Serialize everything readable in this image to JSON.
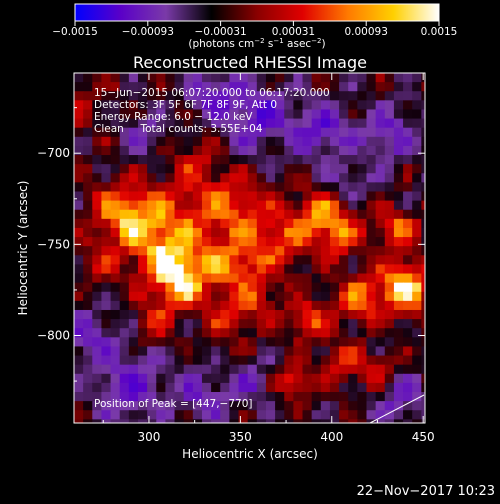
{
  "chart_data": {
    "type": "heatmap",
    "title": "Reconstructed RHESSI Image",
    "colorbar": {
      "ticks": [
        "−0.0015",
        "−0.00093",
        "−0.00031",
        "0.00031",
        "0.00093",
        "0.0015"
      ],
      "range": [
        -0.0015,
        0.0015
      ],
      "unit_parts": [
        "(photons cm",
        "−2",
        " s",
        "−1",
        " asec",
        "−2",
        ")"
      ],
      "colors": [
        "#0000ff",
        "#5a00c8",
        "#7a3aa8",
        "#000000",
        "#8a0000",
        "#e00000",
        "#ff7a00",
        "#ffd000",
        "#ffffff"
      ]
    },
    "info_lines": [
      "15−Jun−2015 06:07:20.000 to 06:17:20.000",
      "Detectors: 3F 5F 6F 7F 8F 9F, Att 0",
      "Energy Range: 6.0 − 12.0 keV",
      "Clean     Total counts: 3.55E+04"
    ],
    "peak_label": "Position of Peak = [447,−770]",
    "peak": [
      447,
      -770
    ],
    "xlabel": "Heliocentric X (arcsec)",
    "ylabel": "Heliocentric Y (arcsec)",
    "xlim": [
      259,
      451
    ],
    "ylim": [
      -848,
      -656
    ],
    "xticks": [
      {
        "value": 300,
        "label": "300"
      },
      {
        "value": 350,
        "label": "350"
      },
      {
        "value": 400,
        "label": "400"
      },
      {
        "value": 450,
        "label": "450"
      }
    ],
    "yticks": [
      {
        "value": -700,
        "label": "−700"
      },
      {
        "value": -750,
        "label": "−750"
      },
      {
        "value": -800,
        "label": "−800"
      }
    ],
    "blobs": [
      {
        "x": 317,
        "y": -768,
        "s": 12,
        "a": 0.0014
      },
      {
        "x": 305,
        "y": -742,
        "s": 16,
        "a": 0.0011
      },
      {
        "x": 283,
        "y": -732,
        "s": 11,
        "a": 0.0008
      },
      {
        "x": 345,
        "y": -730,
        "s": 13,
        "a": 0.0009
      },
      {
        "x": 347,
        "y": -762,
        "s": 10,
        "a": 0.0009
      },
      {
        "x": 372,
        "y": -748,
        "s": 12,
        "a": 0.0008
      },
      {
        "x": 393,
        "y": -733,
        "s": 9,
        "a": 0.0009
      },
      {
        "x": 405,
        "y": -745,
        "s": 9,
        "a": 0.0008
      },
      {
        "x": 436,
        "y": -742,
        "s": 8,
        "a": 0.0009
      },
      {
        "x": 440,
        "y": -774,
        "s": 10,
        "a": 0.0014
      },
      {
        "x": 415,
        "y": -780,
        "s": 9,
        "a": 0.0009
      },
      {
        "x": 387,
        "y": -792,
        "s": 8,
        "a": 0.0008
      },
      {
        "x": 345,
        "y": -792,
        "s": 9,
        "a": 0.0006
      },
      {
        "x": 302,
        "y": -793,
        "s": 8,
        "a": 0.0005
      },
      {
        "x": 325,
        "y": -705,
        "s": 10,
        "a": 0.0005
      },
      {
        "x": 405,
        "y": -815,
        "s": 8,
        "a": 0.0007
      },
      {
        "x": 380,
        "y": -825,
        "s": 6,
        "a": 0.0009
      },
      {
        "x": 425,
        "y": -820,
        "s": 7,
        "a": 0.0007
      },
      {
        "x": 273,
        "y": -760,
        "s": 7,
        "a": 0.0004
      },
      {
        "x": 360,
        "y": -780,
        "s": 7,
        "a": 0.0006
      },
      {
        "x": 260,
        "y": -670,
        "s": 14,
        "a": 0.0003
      },
      {
        "x": 360,
        "y": -680,
        "s": 12,
        "a": -0.0009
      },
      {
        "x": 395,
        "y": -688,
        "s": 11,
        "a": -0.0008
      },
      {
        "x": 335,
        "y": -668,
        "s": 9,
        "a": -0.0007
      },
      {
        "x": 432,
        "y": -690,
        "s": 10,
        "a": -0.0007
      },
      {
        "x": 290,
        "y": -828,
        "s": 14,
        "a": -0.0007
      },
      {
        "x": 330,
        "y": -834,
        "s": 10,
        "a": -0.0006
      },
      {
        "x": 268,
        "y": -800,
        "s": 10,
        "a": -0.0006
      },
      {
        "x": 437,
        "y": -835,
        "s": 10,
        "a": -0.0006
      },
      {
        "x": 410,
        "y": -714,
        "s": 7,
        "a": -0.0005
      },
      {
        "x": 298,
        "y": -690,
        "s": 8,
        "a": -0.0005
      },
      {
        "x": 355,
        "y": -825,
        "s": 7,
        "a": -0.0006
      }
    ],
    "texture_amp": 0.00035
  },
  "footer_date": "22−Nov−2017 10:23"
}
